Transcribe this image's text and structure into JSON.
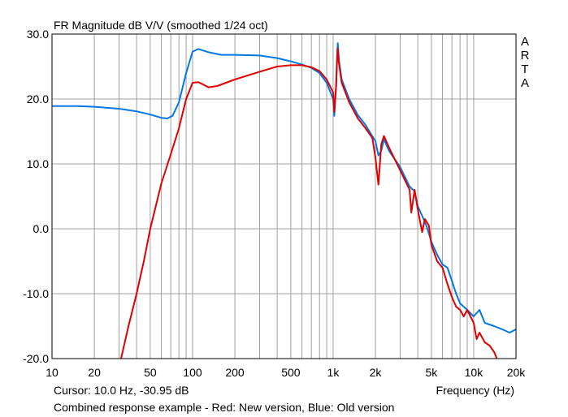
{
  "chart_data": {
    "type": "line",
    "title": "FR Magnitude dB V/V (smoothed 1/24 oct)",
    "xlabel": "Frequency (Hz)",
    "ylabel": "",
    "x_scale": "log",
    "xlim": [
      10,
      20000
    ],
    "ylim": [
      -20,
      30
    ],
    "grid": true,
    "x_ticks": [
      {
        "value": 10,
        "label": "10"
      },
      {
        "value": 20,
        "label": "20"
      },
      {
        "value": 50,
        "label": "50"
      },
      {
        "value": 100,
        "label": "100"
      },
      {
        "value": 200,
        "label": "200"
      },
      {
        "value": 500,
        "label": "500"
      },
      {
        "value": 1000,
        "label": "1k"
      },
      {
        "value": 2000,
        "label": "2k"
      },
      {
        "value": 5000,
        "label": "5k"
      },
      {
        "value": 10000,
        "label": "10k"
      },
      {
        "value": 20000,
        "label": "20k"
      }
    ],
    "y_ticks": [
      {
        "value": 30,
        "label": "30.0"
      },
      {
        "value": 20,
        "label": "20.0"
      },
      {
        "value": 10,
        "label": "10.0"
      },
      {
        "value": 0,
        "label": "0.0"
      },
      {
        "value": -10,
        "label": "-10.0"
      },
      {
        "value": -20,
        "label": "-20.0"
      }
    ],
    "series": [
      {
        "color": "#0078E6",
        "points": [
          [
            10,
            18.9
          ],
          [
            15,
            18.9
          ],
          [
            20,
            18.8
          ],
          [
            30,
            18.5
          ],
          [
            40,
            18.1
          ],
          [
            50,
            17.6
          ],
          [
            60,
            17.1
          ],
          [
            66,
            17.0
          ],
          [
            72,
            17.4
          ],
          [
            80,
            19.5
          ],
          [
            90,
            24.0
          ],
          [
            100,
            27.3
          ],
          [
            110,
            27.7
          ],
          [
            130,
            27.2
          ],
          [
            160,
            26.8
          ],
          [
            200,
            26.8
          ],
          [
            300,
            26.7
          ],
          [
            400,
            26.3
          ],
          [
            500,
            25.8
          ],
          [
            600,
            25.3
          ],
          [
            700,
            24.8
          ],
          [
            800,
            24.0
          ],
          [
            900,
            22.5
          ],
          [
            1000,
            20.0
          ],
          [
            1020,
            17.4
          ],
          [
            1050,
            22.0
          ],
          [
            1070,
            27.0
          ],
          [
            1080,
            28.6
          ],
          [
            1100,
            26.0
          ],
          [
            1150,
            23.0
          ],
          [
            1300,
            20.0
          ],
          [
            1500,
            17.5
          ],
          [
            1700,
            16.0
          ],
          [
            2000,
            13.5
          ],
          [
            2100,
            11.3
          ],
          [
            2200,
            12.0
          ],
          [
            2300,
            13.8
          ],
          [
            2500,
            12.0
          ],
          [
            3000,
            9.5
          ],
          [
            3500,
            6.5
          ],
          [
            3800,
            5.8
          ],
          [
            4000,
            3.5
          ],
          [
            4300,
            2.0
          ],
          [
            4600,
            0.5
          ],
          [
            5000,
            -2.0
          ],
          [
            5500,
            -4.0
          ],
          [
            6000,
            -5.5
          ],
          [
            6500,
            -6.0
          ],
          [
            7000,
            -8.0
          ],
          [
            7500,
            -10.0
          ],
          [
            8000,
            -11.5
          ],
          [
            9000,
            -12.5
          ],
          [
            10000,
            -13.5
          ],
          [
            11000,
            -12.5
          ],
          [
            12000,
            -14.5
          ],
          [
            14000,
            -15.0
          ],
          [
            16000,
            -15.5
          ],
          [
            18000,
            -16.0
          ],
          [
            20000,
            -15.5
          ]
        ]
      },
      {
        "color": "#E00000",
        "points": [
          [
            31,
            -20.0
          ],
          [
            35,
            -15.0
          ],
          [
            40,
            -10.0
          ],
          [
            45,
            -5.0
          ],
          [
            50,
            0.0
          ],
          [
            60,
            7.0
          ],
          [
            70,
            11.5
          ],
          [
            80,
            15.5
          ],
          [
            90,
            20.0
          ],
          [
            100,
            22.5
          ],
          [
            110,
            22.6
          ],
          [
            130,
            21.8
          ],
          [
            150,
            22.0
          ],
          [
            200,
            23.0
          ],
          [
            300,
            24.2
          ],
          [
            400,
            25.0
          ],
          [
            500,
            25.2
          ],
          [
            600,
            25.2
          ],
          [
            700,
            24.9
          ],
          [
            800,
            24.3
          ],
          [
            900,
            23.0
          ],
          [
            1000,
            21.0
          ],
          [
            1020,
            18.0
          ],
          [
            1050,
            22.0
          ],
          [
            1070,
            26.5
          ],
          [
            1080,
            27.8
          ],
          [
            1100,
            25.5
          ],
          [
            1150,
            22.5
          ],
          [
            1300,
            19.5
          ],
          [
            1500,
            17.0
          ],
          [
            1700,
            15.5
          ],
          [
            1900,
            14.0
          ],
          [
            2000,
            11.0
          ],
          [
            2100,
            6.8
          ],
          [
            2200,
            13.0
          ],
          [
            2300,
            14.3
          ],
          [
            2500,
            12.5
          ],
          [
            3000,
            9.0
          ],
          [
            3500,
            6.0
          ],
          [
            3600,
            2.5
          ],
          [
            3800,
            6.0
          ],
          [
            4000,
            3.0
          ],
          [
            4300,
            -0.5
          ],
          [
            4500,
            1.5
          ],
          [
            4800,
            0.5
          ],
          [
            5000,
            -2.5
          ],
          [
            5500,
            -5.0
          ],
          [
            6000,
            -6.0
          ],
          [
            6500,
            -8.5
          ],
          [
            7000,
            -10.5
          ],
          [
            7500,
            -12.0
          ],
          [
            8000,
            -12.5
          ],
          [
            8500,
            -13.5
          ],
          [
            9000,
            -12.5
          ],
          [
            10000,
            -14.5
          ],
          [
            10500,
            -17.0
          ],
          [
            11000,
            -16.0
          ],
          [
            12000,
            -17.5
          ],
          [
            13000,
            -18.0
          ],
          [
            14000,
            -19.0
          ],
          [
            14600,
            -20.0
          ]
        ]
      }
    ]
  },
  "cursor_text": "Cursor: 10.0 Hz, -30.95 dB",
  "footer_text": "Combined response example - Red: New version, Blue: Old version",
  "brand_letters": [
    "A",
    "R",
    "T",
    "A"
  ],
  "colors": {
    "grid": "#A0A0A0",
    "frame": "#000000"
  }
}
